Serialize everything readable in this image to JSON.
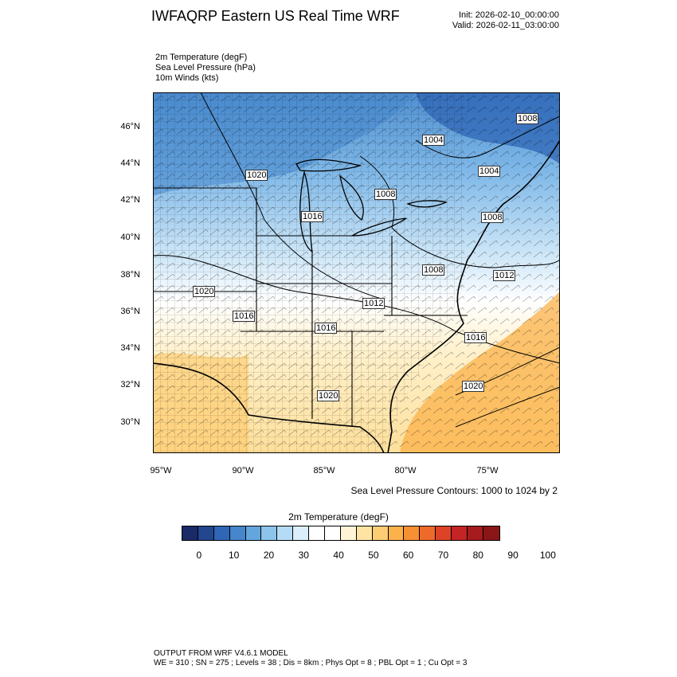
{
  "title": "IWFAQRP Eastern US Real Time WRF",
  "init_label": "Init: 2026-02-10_00:00:00",
  "valid_label": "Valid: 2026-02-11_03:00:00",
  "fields": {
    "line1": "2m Temperature   (degF)",
    "line2": "Sea Level Pressure   (hPa)",
    "line3": "10m Winds   (kts)"
  },
  "lat_labels": [
    "46°N",
    "44°N",
    "42°N",
    "40°N",
    "38°N",
    "36°N",
    "34°N",
    "32°N",
    "30°N"
  ],
  "lon_labels": [
    "95°W",
    "90°W",
    "85°W",
    "80°W",
    "75°W"
  ],
  "pressure_labels": [
    "1020",
    "1016",
    "1008",
    "1004",
    "1008",
    "1004",
    "1008",
    "1008",
    "1012",
    "1020",
    "1016",
    "1016",
    "1012",
    "1016",
    "1020",
    "1020"
  ],
  "contour_note": "Sea Level Pressure Contours: 1000 to 1024 by 2",
  "colorbar": {
    "title": "2m Temperature  (degF)",
    "ticks": [
      "0",
      "10",
      "20",
      "30",
      "40",
      "50",
      "60",
      "70",
      "80",
      "90",
      "100"
    ],
    "colors": [
      "#1a2a66",
      "#23478f",
      "#2f66b5",
      "#4586cc",
      "#63a6dd",
      "#8cc4ec",
      "#b5dcf6",
      "#daeffb",
      "#ffffff",
      "#ffffff",
      "#fff5d6",
      "#ffe3a3",
      "#fdcd73",
      "#fbb24a",
      "#f79033",
      "#ee6a2b",
      "#de4327",
      "#c42423",
      "#a51b1e",
      "#8a1618"
    ]
  },
  "footer": {
    "line1": "OUTPUT FROM WRF V4.6.1 MODEL",
    "line2": "WE = 310 ; SN = 275 ; Levels = 38 ; Dis = 8km ; Phys Opt = 8 ; PBL Opt = 1 ; Cu Opt = 3"
  }
}
